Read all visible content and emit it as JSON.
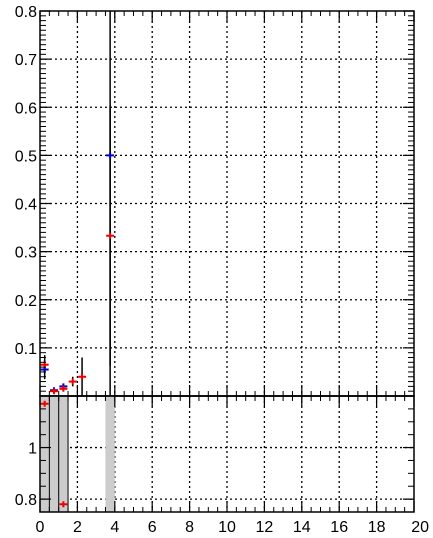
{
  "chart_data": [
    {
      "type": "scatter",
      "title": "",
      "xlabel": "",
      "ylabel": "",
      "xlim": [
        0,
        20
      ],
      "ylim": [
        0,
        0.8
      ],
      "grid": true,
      "grid_style": "dotted",
      "x_ticks": [
        0,
        2,
        4,
        6,
        8,
        10,
        12,
        14,
        16,
        18,
        20
      ],
      "y_ticks": [
        0.1,
        0.2,
        0.3,
        0.4,
        0.5,
        0.6,
        0.7,
        0.8
      ],
      "y_tick_labels": [
        "0.1",
        "0.2",
        "0.3",
        "0.4",
        "0.5",
        "0.6",
        "0.7",
        "0.8"
      ],
      "series": [
        {
          "color": "#0000cc",
          "x": [
            0.25,
            0.75,
            1.25,
            3.75
          ],
          "y": [
            0.055,
            0.012,
            0.02,
            0.5
          ],
          "yerr": [
            0.02,
            0.004,
            0.006,
            0.5
          ]
        },
        {
          "color": "#ee0000",
          "x": [
            0.25,
            0.75,
            1.25,
            1.75,
            2.25,
            3.75
          ],
          "y": [
            0.065,
            0.01,
            0.015,
            0.03,
            0.04,
            0.333
          ],
          "yerr": [
            0.02,
            0.004,
            0.005,
            0.01,
            0.04,
            0.27
          ]
        }
      ]
    },
    {
      "type": "scatter",
      "title": "",
      "xlabel": "",
      "ylabel": "",
      "xlim": [
        0,
        20
      ],
      "ylim": [
        0.75,
        1.2
      ],
      "grid": true,
      "grid_style": "dotted",
      "x_ticks": [
        0,
        2,
        4,
        6,
        8,
        10,
        12,
        14,
        16,
        18,
        20
      ],
      "x_tick_labels": [
        "0",
        "2",
        "4",
        "6",
        "8",
        "10",
        "12",
        "14",
        "16",
        "18",
        "20"
      ],
      "y_ticks": [
        0.8,
        1.0
      ],
      "y_tick_labels": [
        "0.8",
        "1"
      ],
      "reference_line": 1.2,
      "shaded_bins": [
        [
          0,
          0.5
        ],
        [
          0.5,
          1.0
        ],
        [
          1.0,
          1.5
        ],
        [
          3.5,
          4.0
        ]
      ],
      "shade_color": "#cccccc",
      "series": [
        {
          "color": "#ee0000",
          "x": [
            0.25,
            1.25
          ],
          "y": [
            1.17,
            0.78
          ],
          "yerr": [
            0.0,
            0.0
          ]
        }
      ]
    }
  ]
}
